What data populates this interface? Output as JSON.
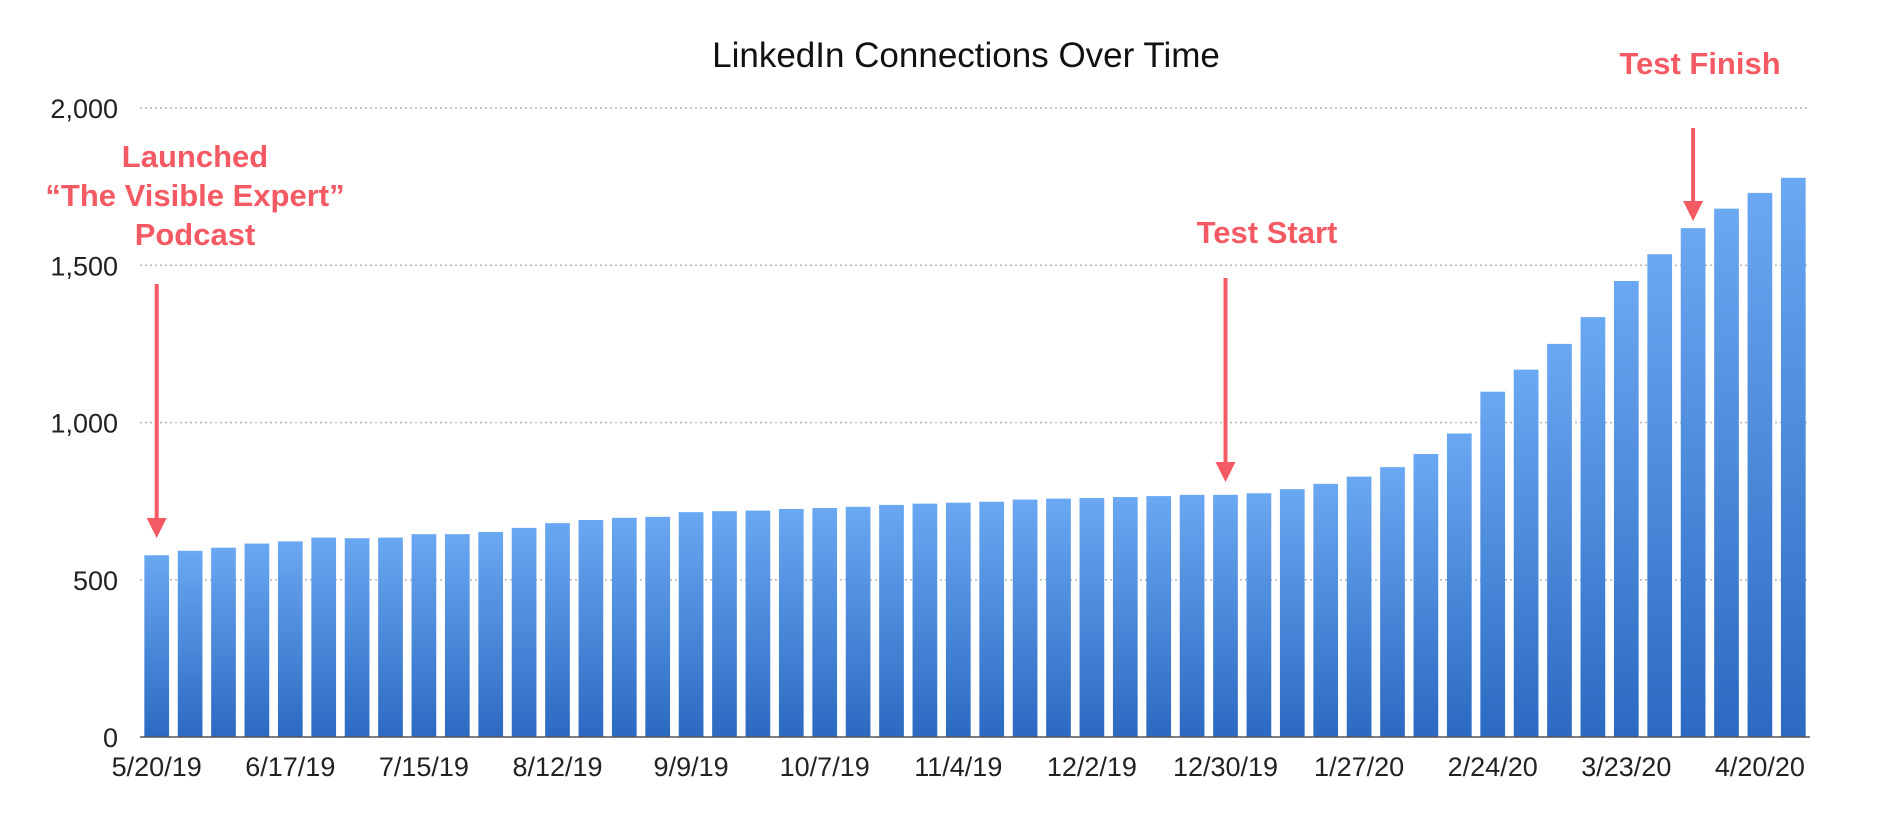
{
  "colors": {
    "bar_top": "#6aa8f2",
    "bar_bottom": "#2c6ac2",
    "annotation": "#f35a63"
  },
  "chart_data": {
    "type": "bar",
    "title": "LinkedIn Connections Over Time",
    "xlabel": "",
    "ylabel": "",
    "ylim": [
      0,
      2000
    ],
    "yticks": [
      0,
      500,
      1000,
      1500,
      2000
    ],
    "ytick_labels": [
      "0",
      "500",
      "1,000",
      "1,500",
      "2,000"
    ],
    "grid": true,
    "xtick_labels": [
      "5/20/19",
      "6/17/19",
      "7/15/19",
      "8/12/19",
      "9/9/19",
      "10/7/19",
      "11/4/19",
      "12/2/19",
      "12/30/19",
      "1/27/20",
      "2/24/20",
      "3/23/20",
      "4/20/20"
    ],
    "categories": [
      "5/20/19",
      "5/27/19",
      "6/3/19",
      "6/10/19",
      "6/17/19",
      "6/24/19",
      "7/1/19",
      "7/8/19",
      "7/15/19",
      "7/22/19",
      "7/29/19",
      "8/5/19",
      "8/12/19",
      "8/19/19",
      "8/26/19",
      "9/2/19",
      "9/9/19",
      "9/16/19",
      "9/23/19",
      "9/30/19",
      "10/7/19",
      "10/14/19",
      "10/21/19",
      "10/28/19",
      "11/4/19",
      "11/11/19",
      "11/18/19",
      "11/25/19",
      "12/2/19",
      "12/9/19",
      "12/16/19",
      "12/23/19",
      "12/30/19",
      "1/6/20",
      "1/13/20",
      "1/20/20",
      "1/27/20",
      "2/3/20",
      "2/10/20",
      "2/17/20",
      "2/24/20",
      "3/2/20",
      "3/9/20",
      "3/16/20",
      "3/23/20",
      "3/30/20",
      "4/6/20",
      "4/13/20",
      "4/20/20",
      "4/27/20"
    ],
    "values": [
      578,
      592,
      602,
      615,
      622,
      634,
      632,
      634,
      645,
      645,
      652,
      665,
      680,
      690,
      697,
      700,
      715,
      718,
      720,
      725,
      728,
      732,
      738,
      742,
      745,
      748,
      755,
      758,
      760,
      763,
      766,
      770,
      770,
      775,
      788,
      805,
      828,
      858,
      900,
      965,
      1098,
      1168,
      1250,
      1335,
      1450,
      1535,
      1618,
      1680,
      1730,
      1778
    ],
    "annotations": [
      {
        "name": "launched",
        "lines": [
          "Launched",
          "“The Visible Expert”",
          "Podcast"
        ],
        "category": "5/20/19"
      },
      {
        "name": "test-start",
        "lines": [
          "Test Start"
        ],
        "category": "12/30/19"
      },
      {
        "name": "test-finish",
        "lines": [
          "Test Finish"
        ],
        "category": "4/6/20"
      }
    ]
  }
}
